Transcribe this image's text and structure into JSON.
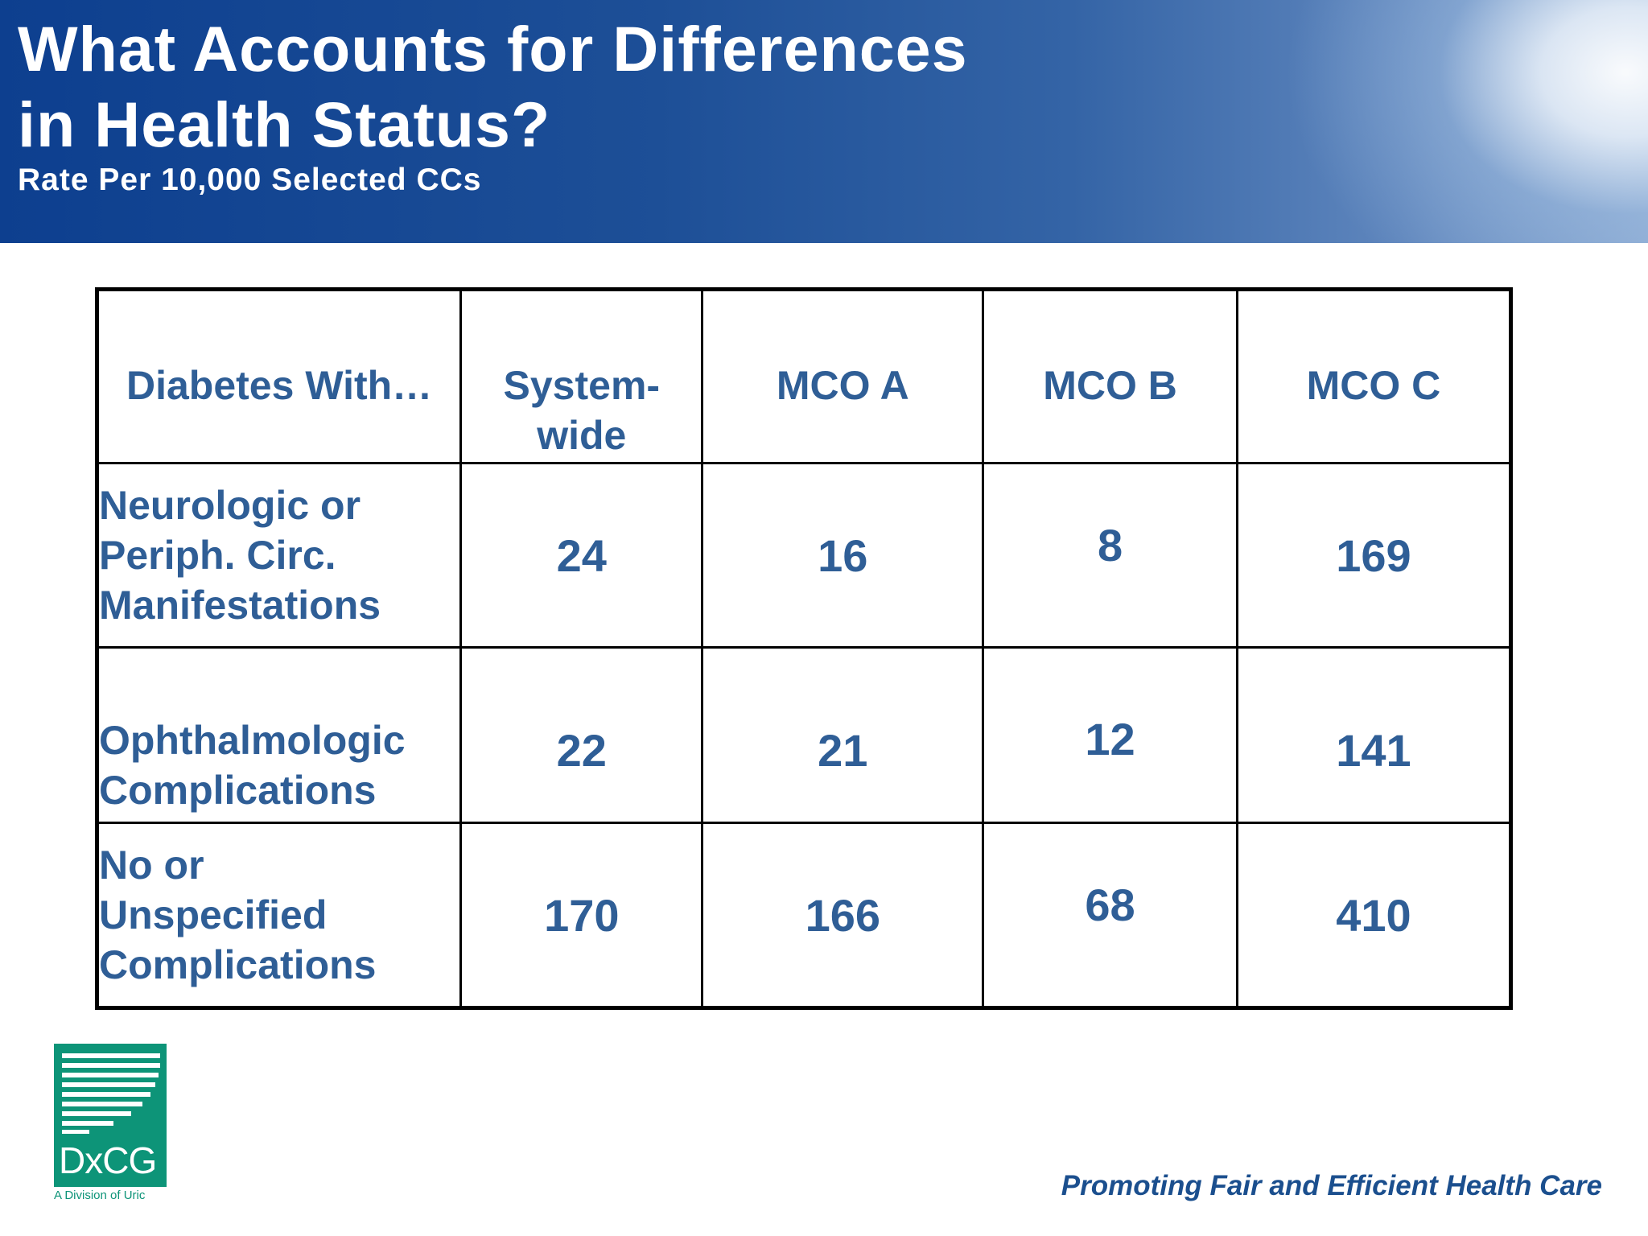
{
  "header": {
    "title_line1": "What Accounts for Differences",
    "title_line2": "in Health Status?",
    "subtitle": "Rate Per 10,000 Selected CCs"
  },
  "table": {
    "corner_label": "Diabetes With…",
    "columns": [
      {
        "line1": "System-",
        "line2": "wide"
      },
      {
        "line1": "MCO A",
        "line2": ""
      },
      {
        "line1": "MCO B",
        "line2": ""
      },
      {
        "line1": "MCO C",
        "line2": ""
      }
    ],
    "rows": [
      {
        "label_lines": [
          "Neurologic or",
          "Periph. Circ.",
          "Manifestations"
        ],
        "values": [
          "24",
          "16",
          "8",
          "169"
        ]
      },
      {
        "label_lines": [
          "Ophthalmologic",
          "Complications"
        ],
        "values": [
          "22",
          "21",
          "12",
          "141"
        ]
      },
      {
        "label_lines": [
          "No or",
          "Unspecified",
          "Complications"
        ],
        "values": [
          "170",
          "166",
          "68",
          "410"
        ]
      }
    ]
  },
  "logo": {
    "wordmark": "DxCG",
    "sub": "A Division of Uric",
    "color": "#0d9478"
  },
  "footer": {
    "tagline": "Promoting Fair and Efficient Health Care"
  },
  "colors": {
    "table_text": "#2f5e96",
    "header_blue": "#0d3f8f"
  }
}
